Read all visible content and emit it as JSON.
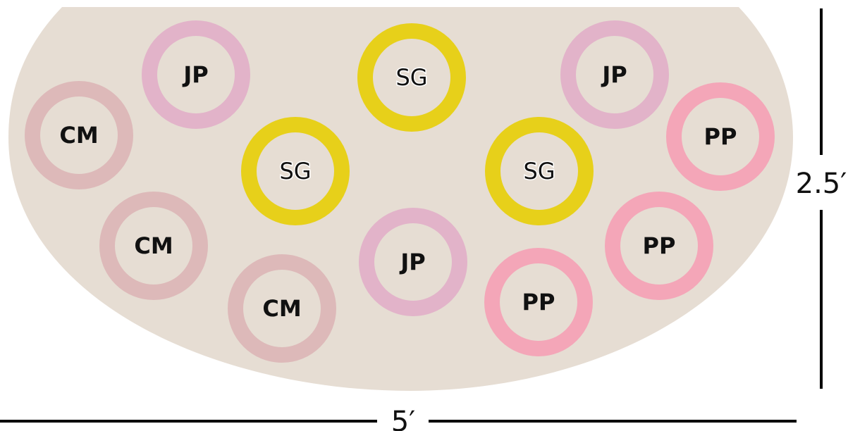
{
  "bed": {
    "fill": "#e6ddd3"
  },
  "plants": [
    {
      "code": "JP",
      "color": "#e2b3c9"
    },
    {
      "code": "SG",
      "color": "#e7d01a"
    },
    {
      "code": "JP",
      "color": "#e2b3c9"
    },
    {
      "code": "CM",
      "color": "#ddb9b9"
    },
    {
      "code": "PP",
      "color": "#f4a6b8"
    },
    {
      "code": "SG",
      "color": "#e7d01a"
    },
    {
      "code": "SG",
      "color": "#e7d01a"
    },
    {
      "code": "CM",
      "color": "#ddb9b9"
    },
    {
      "code": "PP",
      "color": "#f4a6b8"
    },
    {
      "code": "JP",
      "color": "#e2b3c9"
    },
    {
      "code": "CM",
      "color": "#ddb9b9"
    },
    {
      "code": "PP",
      "color": "#f4a6b8"
    }
  ],
  "dimensions": {
    "height_label": "2.5′",
    "width_label": "5′"
  }
}
